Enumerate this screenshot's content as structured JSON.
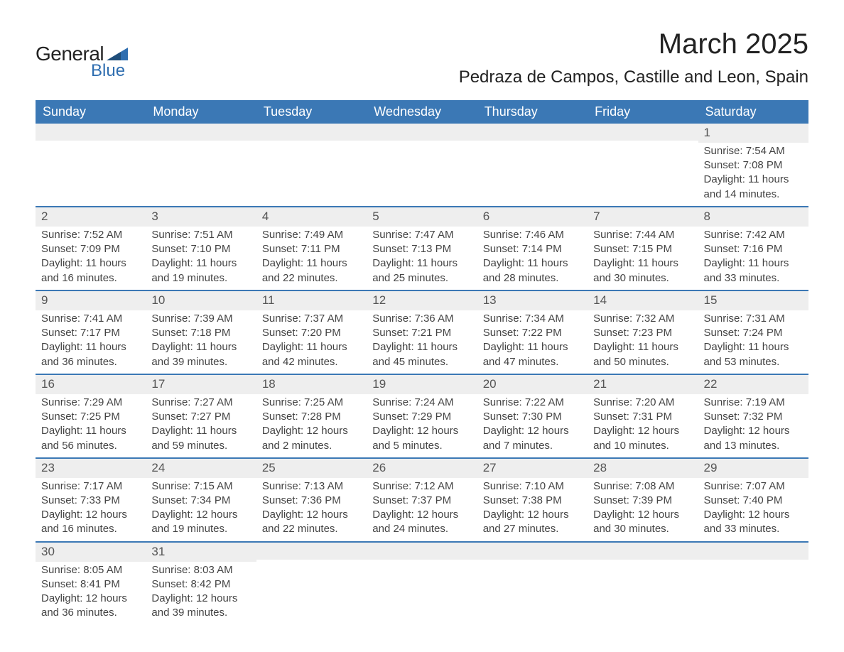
{
  "logo": {
    "text_general": "General",
    "text_blue": "Blue",
    "icon_color": "#2f6eb0"
  },
  "title": {
    "month": "March 2025",
    "location": "Pedraza de Campos, Castille and Leon, Spain"
  },
  "colors": {
    "header_bg": "#3b78b5",
    "header_text": "#ffffff",
    "daynum_bg": "#eeeeee",
    "row_border": "#3b78b5",
    "body_text": "#444444",
    "logo_blue": "#2f6eb0"
  },
  "typography": {
    "month_title_size": 40,
    "location_size": 24,
    "th_size": 18,
    "daynum_size": 17,
    "cell_size": 15
  },
  "calendar": {
    "type": "table",
    "columns": [
      "Sunday",
      "Monday",
      "Tuesday",
      "Wednesday",
      "Thursday",
      "Friday",
      "Saturday"
    ],
    "weeks": [
      [
        null,
        null,
        null,
        null,
        null,
        null,
        {
          "day": "1",
          "sunrise": "Sunrise: 7:54 AM",
          "sunset": "Sunset: 7:08 PM",
          "daylight1": "Daylight: 11 hours",
          "daylight2": "and 14 minutes."
        }
      ],
      [
        {
          "day": "2",
          "sunrise": "Sunrise: 7:52 AM",
          "sunset": "Sunset: 7:09 PM",
          "daylight1": "Daylight: 11 hours",
          "daylight2": "and 16 minutes."
        },
        {
          "day": "3",
          "sunrise": "Sunrise: 7:51 AM",
          "sunset": "Sunset: 7:10 PM",
          "daylight1": "Daylight: 11 hours",
          "daylight2": "and 19 minutes."
        },
        {
          "day": "4",
          "sunrise": "Sunrise: 7:49 AM",
          "sunset": "Sunset: 7:11 PM",
          "daylight1": "Daylight: 11 hours",
          "daylight2": "and 22 minutes."
        },
        {
          "day": "5",
          "sunrise": "Sunrise: 7:47 AM",
          "sunset": "Sunset: 7:13 PM",
          "daylight1": "Daylight: 11 hours",
          "daylight2": "and 25 minutes."
        },
        {
          "day": "6",
          "sunrise": "Sunrise: 7:46 AM",
          "sunset": "Sunset: 7:14 PM",
          "daylight1": "Daylight: 11 hours",
          "daylight2": "and 28 minutes."
        },
        {
          "day": "7",
          "sunrise": "Sunrise: 7:44 AM",
          "sunset": "Sunset: 7:15 PM",
          "daylight1": "Daylight: 11 hours",
          "daylight2": "and 30 minutes."
        },
        {
          "day": "8",
          "sunrise": "Sunrise: 7:42 AM",
          "sunset": "Sunset: 7:16 PM",
          "daylight1": "Daylight: 11 hours",
          "daylight2": "and 33 minutes."
        }
      ],
      [
        {
          "day": "9",
          "sunrise": "Sunrise: 7:41 AM",
          "sunset": "Sunset: 7:17 PM",
          "daylight1": "Daylight: 11 hours",
          "daylight2": "and 36 minutes."
        },
        {
          "day": "10",
          "sunrise": "Sunrise: 7:39 AM",
          "sunset": "Sunset: 7:18 PM",
          "daylight1": "Daylight: 11 hours",
          "daylight2": "and 39 minutes."
        },
        {
          "day": "11",
          "sunrise": "Sunrise: 7:37 AM",
          "sunset": "Sunset: 7:20 PM",
          "daylight1": "Daylight: 11 hours",
          "daylight2": "and 42 minutes."
        },
        {
          "day": "12",
          "sunrise": "Sunrise: 7:36 AM",
          "sunset": "Sunset: 7:21 PM",
          "daylight1": "Daylight: 11 hours",
          "daylight2": "and 45 minutes."
        },
        {
          "day": "13",
          "sunrise": "Sunrise: 7:34 AM",
          "sunset": "Sunset: 7:22 PM",
          "daylight1": "Daylight: 11 hours",
          "daylight2": "and 47 minutes."
        },
        {
          "day": "14",
          "sunrise": "Sunrise: 7:32 AM",
          "sunset": "Sunset: 7:23 PM",
          "daylight1": "Daylight: 11 hours",
          "daylight2": "and 50 minutes."
        },
        {
          "day": "15",
          "sunrise": "Sunrise: 7:31 AM",
          "sunset": "Sunset: 7:24 PM",
          "daylight1": "Daylight: 11 hours",
          "daylight2": "and 53 minutes."
        }
      ],
      [
        {
          "day": "16",
          "sunrise": "Sunrise: 7:29 AM",
          "sunset": "Sunset: 7:25 PM",
          "daylight1": "Daylight: 11 hours",
          "daylight2": "and 56 minutes."
        },
        {
          "day": "17",
          "sunrise": "Sunrise: 7:27 AM",
          "sunset": "Sunset: 7:27 PM",
          "daylight1": "Daylight: 11 hours",
          "daylight2": "and 59 minutes."
        },
        {
          "day": "18",
          "sunrise": "Sunrise: 7:25 AM",
          "sunset": "Sunset: 7:28 PM",
          "daylight1": "Daylight: 12 hours",
          "daylight2": "and 2 minutes."
        },
        {
          "day": "19",
          "sunrise": "Sunrise: 7:24 AM",
          "sunset": "Sunset: 7:29 PM",
          "daylight1": "Daylight: 12 hours",
          "daylight2": "and 5 minutes."
        },
        {
          "day": "20",
          "sunrise": "Sunrise: 7:22 AM",
          "sunset": "Sunset: 7:30 PM",
          "daylight1": "Daylight: 12 hours",
          "daylight2": "and 7 minutes."
        },
        {
          "day": "21",
          "sunrise": "Sunrise: 7:20 AM",
          "sunset": "Sunset: 7:31 PM",
          "daylight1": "Daylight: 12 hours",
          "daylight2": "and 10 minutes."
        },
        {
          "day": "22",
          "sunrise": "Sunrise: 7:19 AM",
          "sunset": "Sunset: 7:32 PM",
          "daylight1": "Daylight: 12 hours",
          "daylight2": "and 13 minutes."
        }
      ],
      [
        {
          "day": "23",
          "sunrise": "Sunrise: 7:17 AM",
          "sunset": "Sunset: 7:33 PM",
          "daylight1": "Daylight: 12 hours",
          "daylight2": "and 16 minutes."
        },
        {
          "day": "24",
          "sunrise": "Sunrise: 7:15 AM",
          "sunset": "Sunset: 7:34 PM",
          "daylight1": "Daylight: 12 hours",
          "daylight2": "and 19 minutes."
        },
        {
          "day": "25",
          "sunrise": "Sunrise: 7:13 AM",
          "sunset": "Sunset: 7:36 PM",
          "daylight1": "Daylight: 12 hours",
          "daylight2": "and 22 minutes."
        },
        {
          "day": "26",
          "sunrise": "Sunrise: 7:12 AM",
          "sunset": "Sunset: 7:37 PM",
          "daylight1": "Daylight: 12 hours",
          "daylight2": "and 24 minutes."
        },
        {
          "day": "27",
          "sunrise": "Sunrise: 7:10 AM",
          "sunset": "Sunset: 7:38 PM",
          "daylight1": "Daylight: 12 hours",
          "daylight2": "and 27 minutes."
        },
        {
          "day": "28",
          "sunrise": "Sunrise: 7:08 AM",
          "sunset": "Sunset: 7:39 PM",
          "daylight1": "Daylight: 12 hours",
          "daylight2": "and 30 minutes."
        },
        {
          "day": "29",
          "sunrise": "Sunrise: 7:07 AM",
          "sunset": "Sunset: 7:40 PM",
          "daylight1": "Daylight: 12 hours",
          "daylight2": "and 33 minutes."
        }
      ],
      [
        {
          "day": "30",
          "sunrise": "Sunrise: 8:05 AM",
          "sunset": "Sunset: 8:41 PM",
          "daylight1": "Daylight: 12 hours",
          "daylight2": "and 36 minutes."
        },
        {
          "day": "31",
          "sunrise": "Sunrise: 8:03 AM",
          "sunset": "Sunset: 8:42 PM",
          "daylight1": "Daylight: 12 hours",
          "daylight2": "and 39 minutes."
        },
        null,
        null,
        null,
        null,
        null
      ]
    ]
  }
}
